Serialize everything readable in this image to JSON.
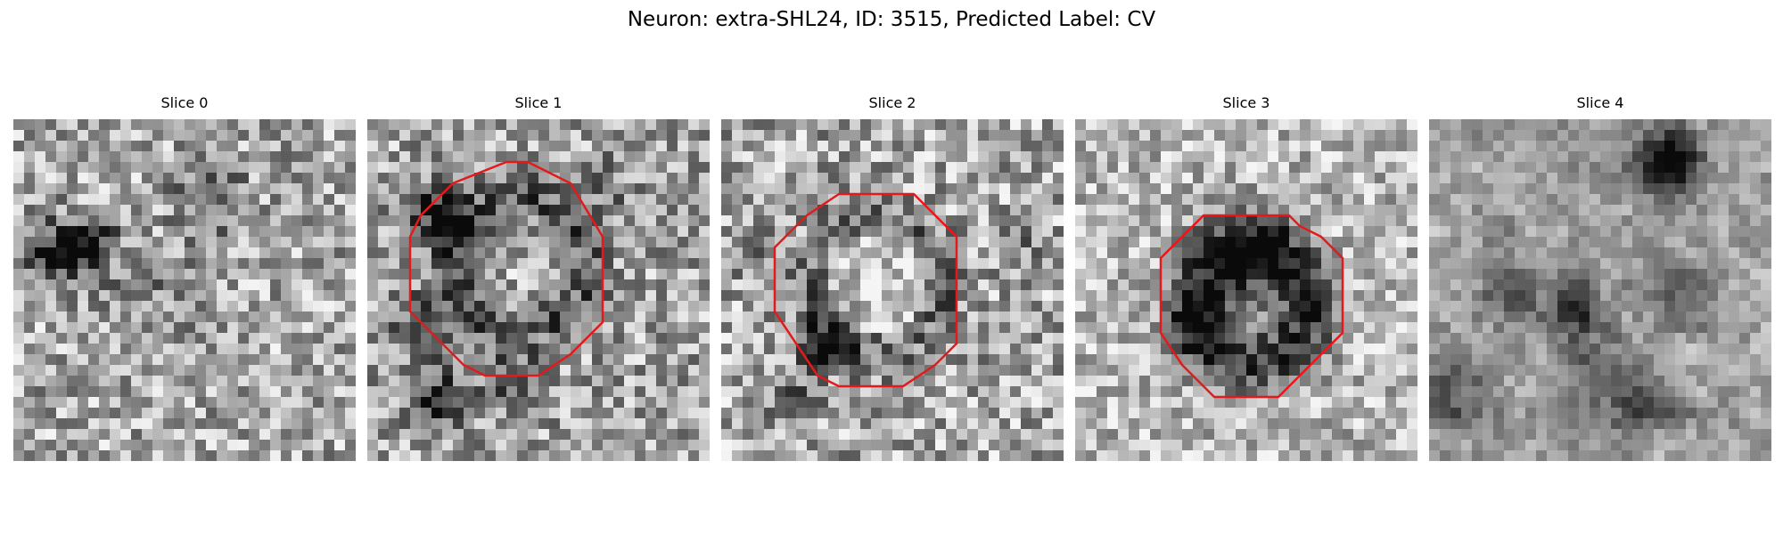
{
  "figure": {
    "title": "Neuron: extra-SHL24, ID: 3515, Predicted Label: CV"
  },
  "panels": [
    {
      "title": "Slice 0",
      "has_outline": false
    },
    {
      "title": "Slice 1",
      "has_outline": true
    },
    {
      "title": "Slice 2",
      "has_outline": true
    },
    {
      "title": "Slice 3",
      "has_outline": true
    },
    {
      "title": "Slice 4",
      "has_outline": false
    }
  ],
  "colors": {
    "outline": "#e31a1c",
    "background": "#ffffff"
  }
}
